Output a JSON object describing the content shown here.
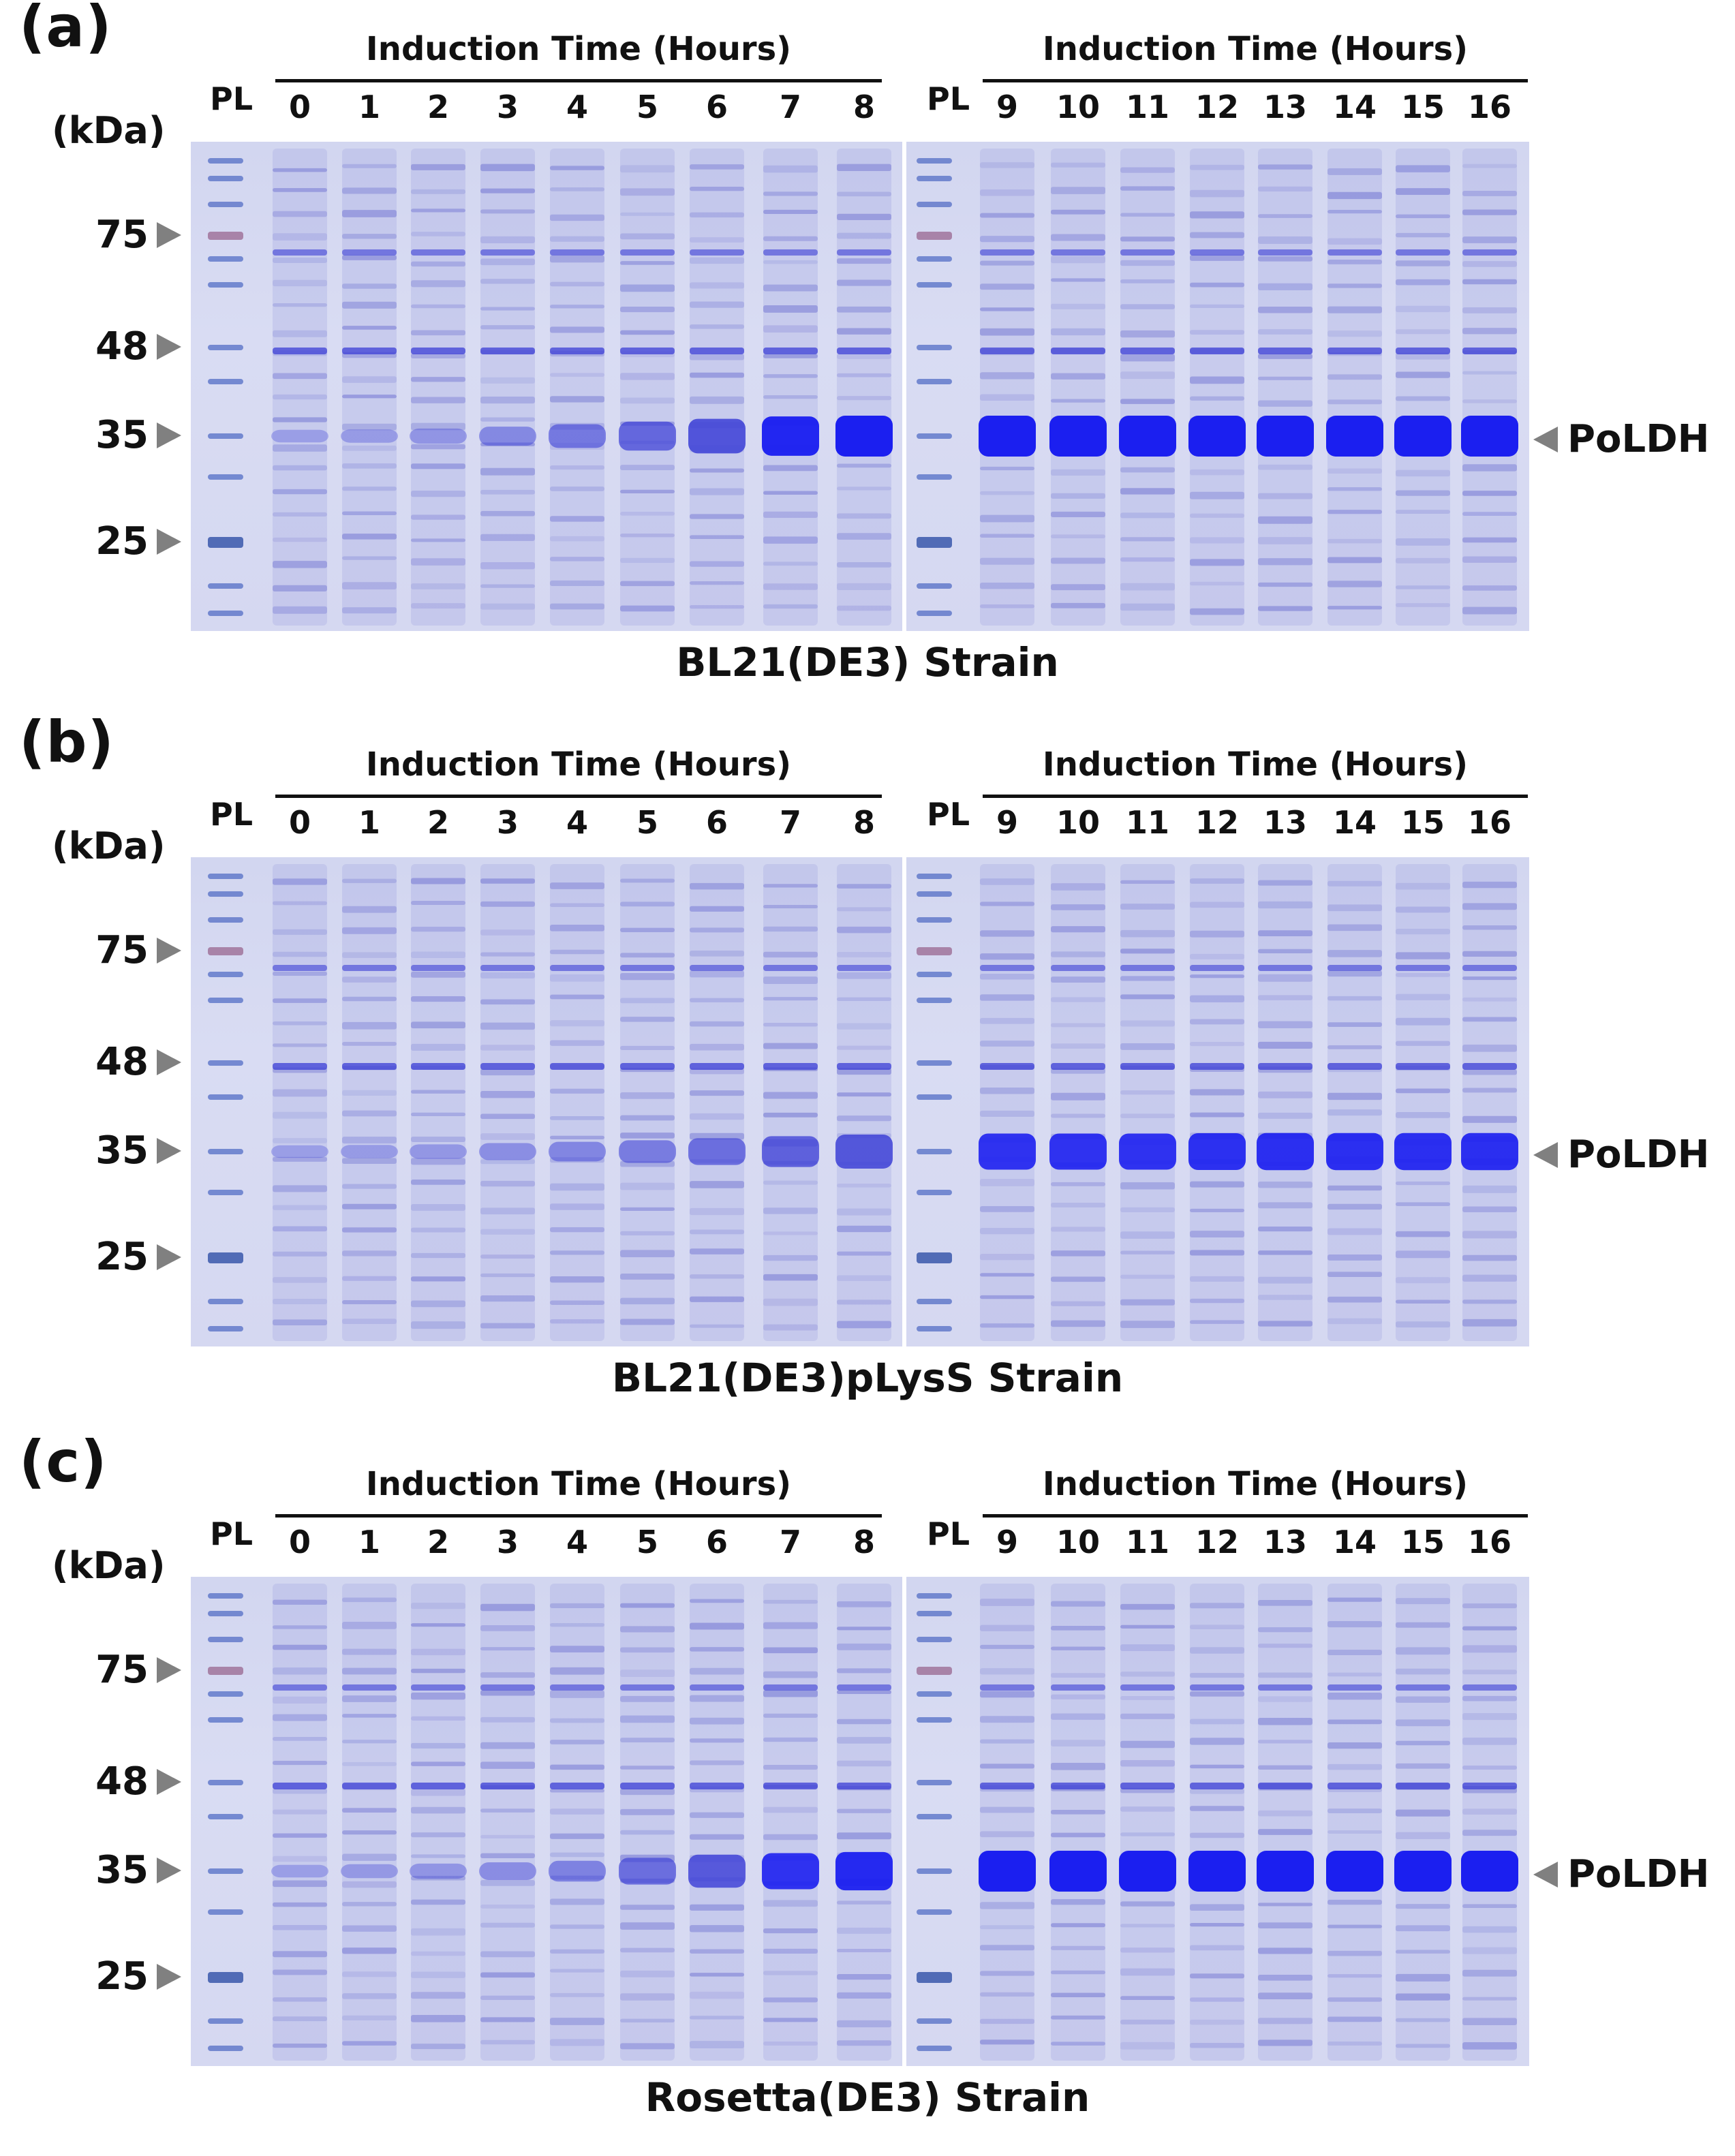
{
  "figure": {
    "induction_label": "Induction Time (Hours)",
    "ladder_label": "PL",
    "unit_label": "(kDa)",
    "markers": [
      "75",
      "48",
      "35",
      "25"
    ],
    "band_label": "PoLDH",
    "left_lanes": [
      "0",
      "1",
      "2",
      "3",
      "4",
      "5",
      "6",
      "7",
      "8"
    ],
    "right_lanes": [
      "9",
      "10",
      "11",
      "12",
      "13",
      "14",
      "15",
      "16"
    ],
    "colors": {
      "gel_background": "#d5d8f1",
      "band": "#3c3fd6",
      "strong_band": "#1b1ff0",
      "ladder_75": "#9c6d96",
      "ladder_25": "#2f4fa6"
    }
  },
  "panels": [
    {
      "label": "(a)",
      "strain": "BL21(DE3) Strain",
      "poldh_intensity": [
        0.1,
        0.12,
        0.18,
        0.3,
        0.45,
        0.62,
        0.8,
        0.95,
        1.0,
        1.0,
        1.0,
        1.0,
        1.0,
        1.0,
        1.0,
        1.0,
        1.0
      ]
    },
    {
      "label": "(b)",
      "strain": "BL21(DE3)pLysS Strain",
      "poldh_intensity": [
        0.1,
        0.12,
        0.16,
        0.24,
        0.32,
        0.42,
        0.55,
        0.68,
        0.78,
        0.85,
        0.85,
        0.85,
        0.87,
        0.88,
        0.88,
        0.88,
        0.88
      ]
    },
    {
      "label": "(c)",
      "strain": "Rosetta(DE3) Strain",
      "poldh_intensity": [
        0.1,
        0.14,
        0.18,
        0.26,
        0.36,
        0.55,
        0.75,
        0.85,
        0.92,
        1.0,
        1.0,
        1.0,
        1.0,
        1.0,
        1.0,
        1.0,
        1.0
      ]
    }
  ]
}
